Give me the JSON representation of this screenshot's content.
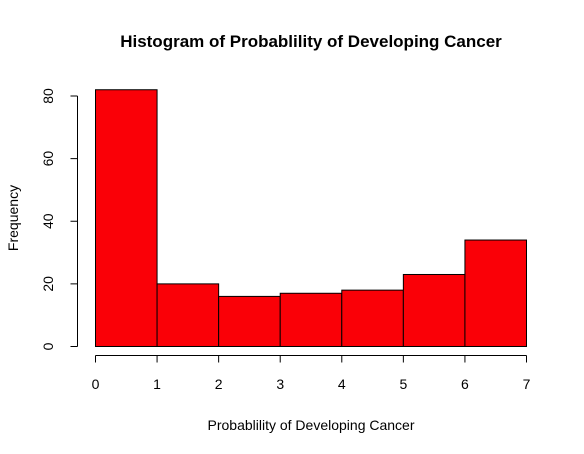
{
  "chart_data": {
    "type": "bar",
    "title": "Histogram of Probablility of Developing Cancer",
    "xlabel": "Probablility of Developing Cancer",
    "ylabel": "Frequency",
    "bins": [
      {
        "start": 0,
        "end": 1,
        "count": 82
      },
      {
        "start": 1,
        "end": 2,
        "count": 20
      },
      {
        "start": 2,
        "end": 3,
        "count": 16
      },
      {
        "start": 3,
        "end": 4,
        "count": 17
      },
      {
        "start": 4,
        "end": 5,
        "count": 18
      },
      {
        "start": 5,
        "end": 6,
        "count": 23
      },
      {
        "start": 6,
        "end": 7,
        "count": 34
      }
    ],
    "xlim": [
      0,
      7
    ],
    "ylim": [
      0,
      82
    ],
    "x_ticks": [
      "0",
      "1",
      "2",
      "3",
      "4",
      "5",
      "6",
      "7"
    ],
    "y_ticks": [
      "0",
      "20",
      "40",
      "60",
      "80"
    ],
    "bar_color": "#fa0007",
    "border_color": "#000000",
    "grid": false
  }
}
